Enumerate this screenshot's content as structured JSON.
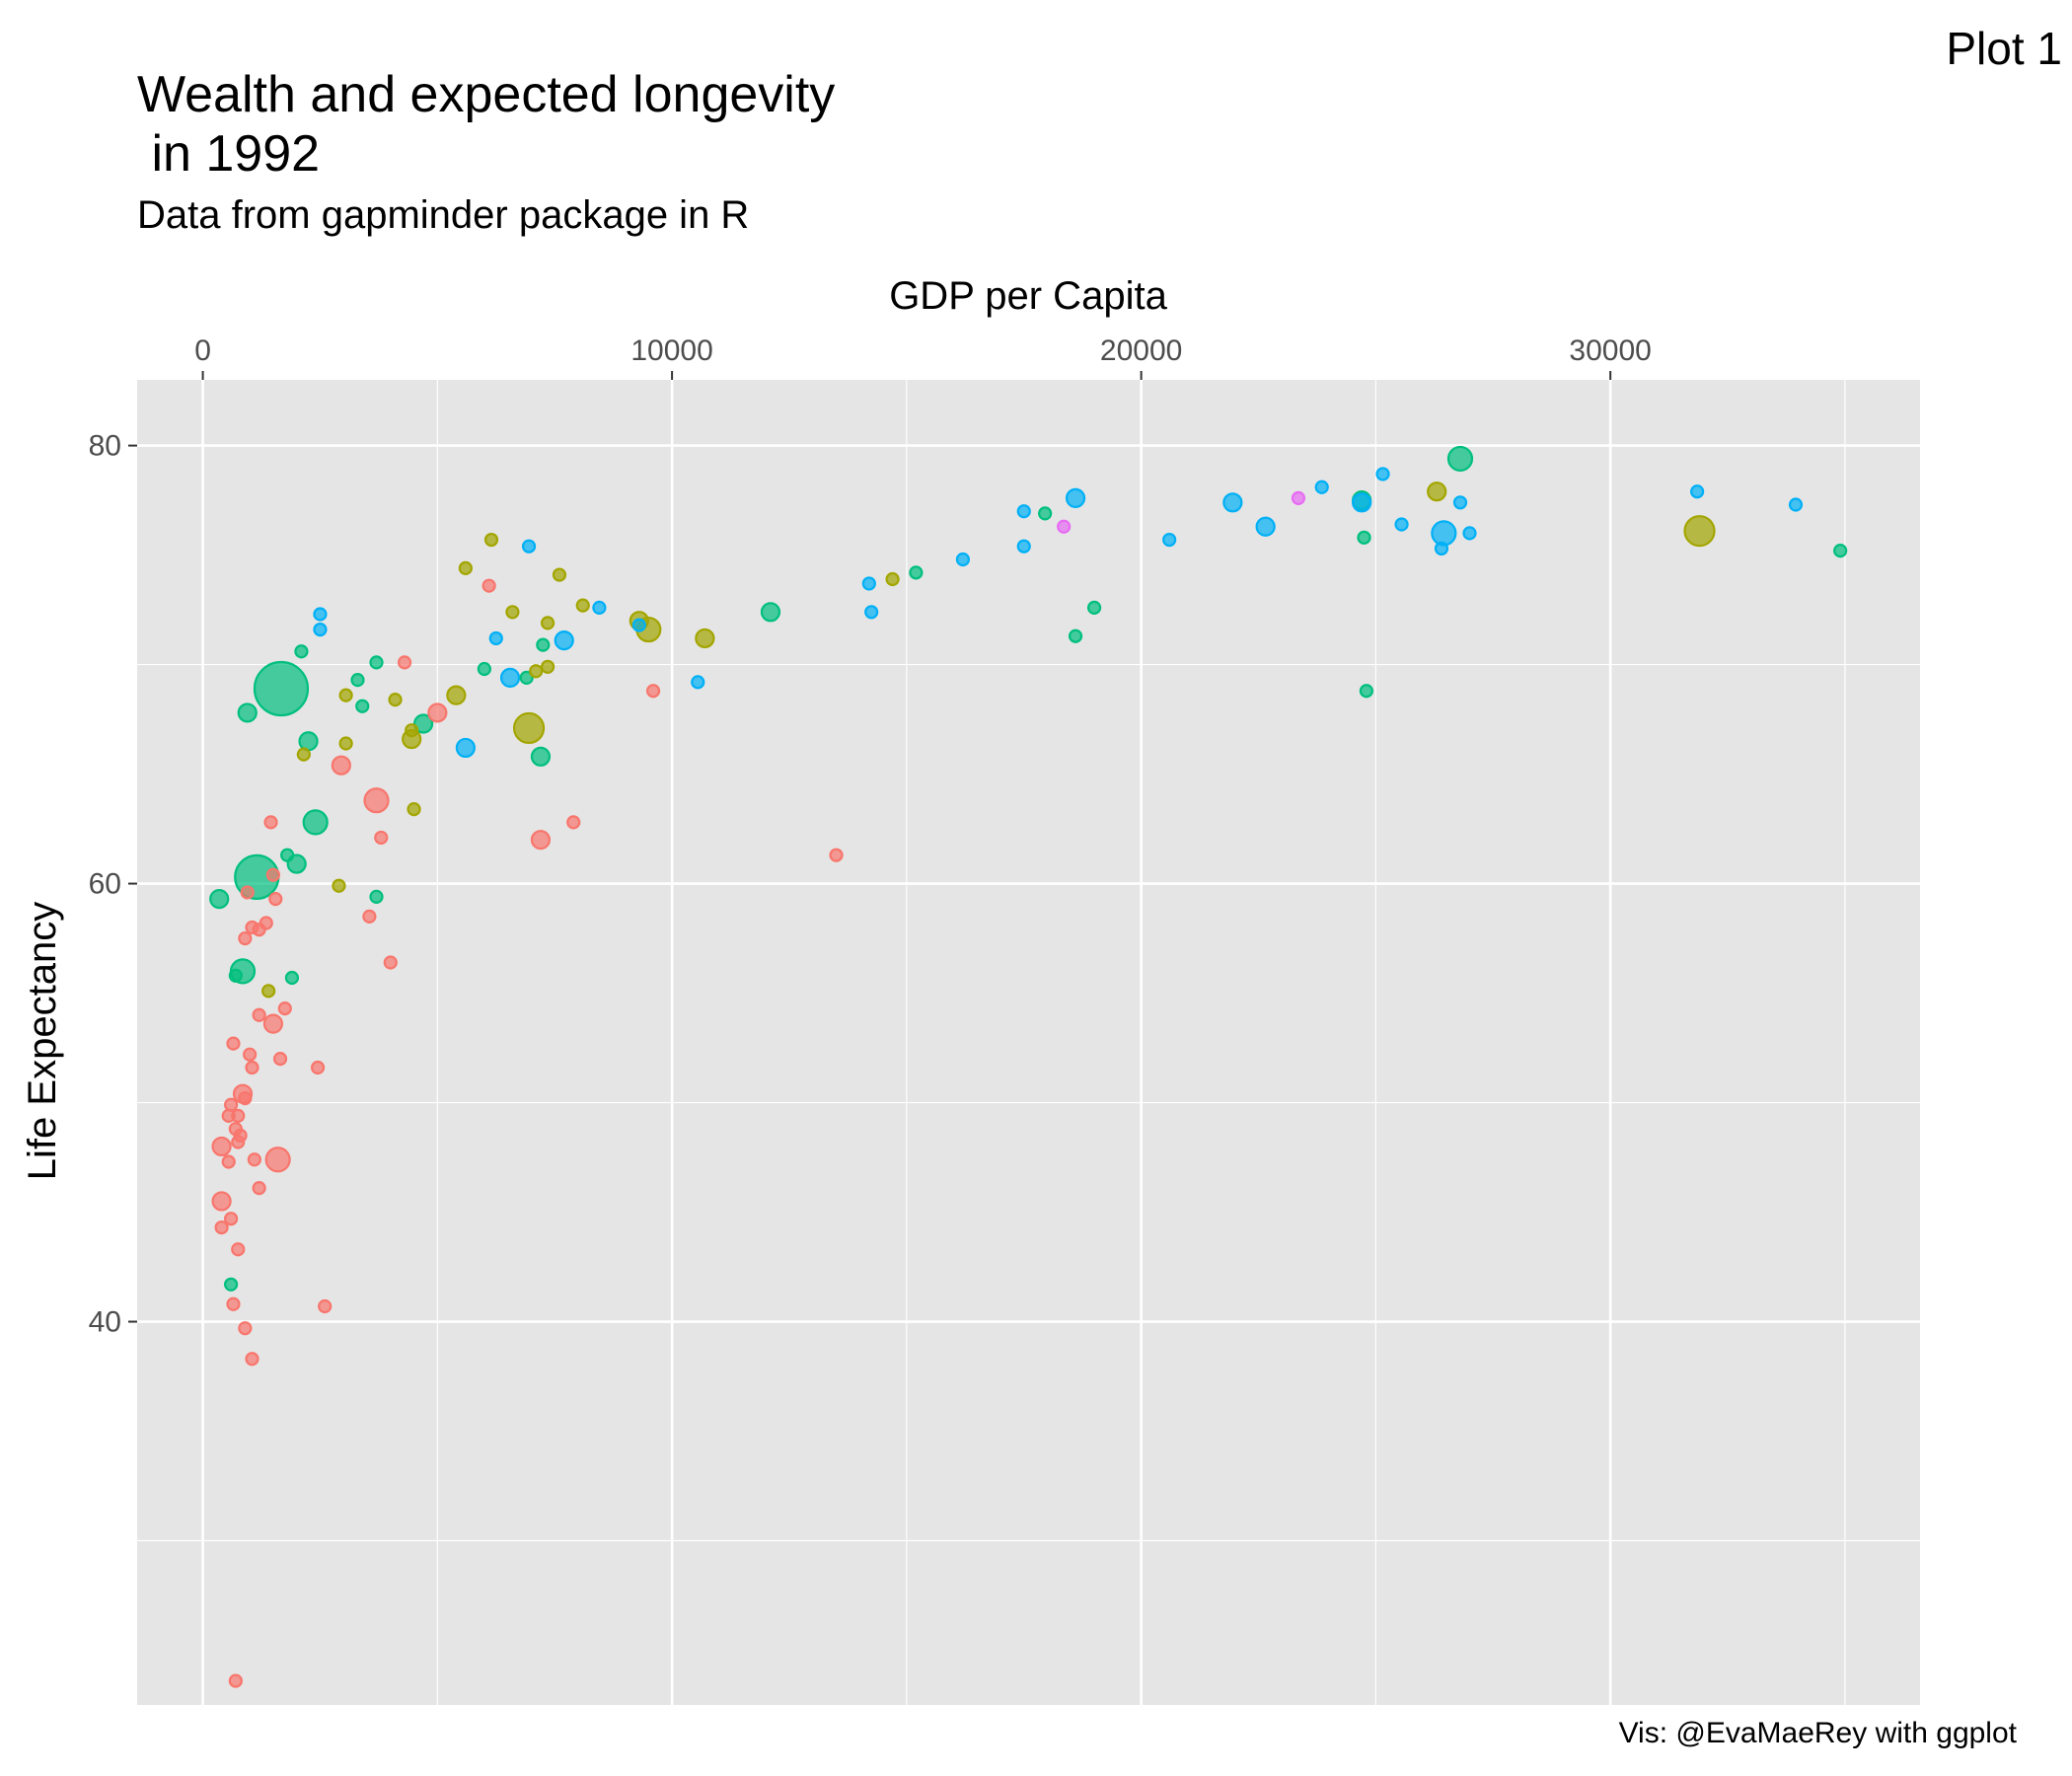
{
  "plot_label": "Plot 1",
  "caption": "Vis: @EvaMaeRey with ggplot",
  "colors": {
    "Africa": "#F8766D",
    "Americas": "#A3A500",
    "Asia": "#00BF7D",
    "Europe": "#00B0F6",
    "Oceania": "#E76BF3",
    "panel_bg": "#E5E5E5",
    "grid": "#FFFFFF"
  },
  "chart_data": {
    "type": "scatter",
    "title": "Wealth and expected longevity\n in 1992",
    "subtitle": "Data from gapminder package in R",
    "xlabel": "GDP per Capita",
    "ylabel": "Life Expectancy",
    "x_axis_position": "top",
    "xlim": [
      -1400,
      36600
    ],
    "ylim": [
      22.5,
      83
    ],
    "x_ticks": [
      0,
      10000,
      20000,
      30000
    ],
    "x_tick_labels": [
      "0",
      "10000",
      "20000",
      "30000"
    ],
    "y_ticks": [
      40,
      60,
      80
    ],
    "y_tick_labels": [
      "40",
      "60",
      "80"
    ],
    "grid": true,
    "legend": "none",
    "color_by": "continent",
    "size_by": "population",
    "points": [
      [
        1670,
        68.9,
        5,
        "Asia"
      ],
      [
        1150,
        60.3,
        4,
        "Asia"
      ],
      [
        2400,
        62.8,
        2,
        "Asia"
      ],
      [
        2000,
        60.9,
        1,
        "Asia"
      ],
      [
        350,
        59.3,
        1,
        "Asia"
      ],
      [
        950,
        67.8,
        1,
        "Asia"
      ],
      [
        2250,
        66.5,
        1,
        "Asia"
      ],
      [
        2100,
        70.6,
        0,
        "Asia"
      ],
      [
        3700,
        70.1,
        0,
        "Asia"
      ],
      [
        3300,
        69.3,
        0,
        "Asia"
      ],
      [
        3400,
        68.1,
        0,
        "Asia"
      ],
      [
        1800,
        61.3,
        0,
        "Asia"
      ],
      [
        3700,
        59.4,
        0,
        "Asia"
      ],
      [
        850,
        56,
        2,
        "Asia"
      ],
      [
        700,
        55.8,
        0,
        "Asia"
      ],
      [
        1900,
        55.7,
        0,
        "Asia"
      ],
      [
        600,
        41.7,
        0,
        "Asia"
      ],
      [
        4700,
        67.3,
        1,
        "Asia"
      ],
      [
        7200,
        65.8,
        1,
        "Asia"
      ],
      [
        7250,
        70.9,
        0,
        "Asia"
      ],
      [
        6000,
        69.8,
        0,
        "Asia"
      ],
      [
        6900,
        69.4,
        0,
        "Asia"
      ],
      [
        12100,
        72.4,
        1,
        "Asia"
      ],
      [
        15200,
        74.2,
        0,
        "Asia"
      ],
      [
        17950,
        76.9,
        0,
        "Asia"
      ],
      [
        18600,
        71.3,
        0,
        "Asia"
      ],
      [
        19000,
        72.6,
        0,
        "Asia"
      ],
      [
        24700,
        77.5,
        1,
        "Asia"
      ],
      [
        24750,
        75.8,
        0,
        "Asia"
      ],
      [
        24800,
        68.8,
        0,
        "Asia"
      ],
      [
        26800,
        79.4,
        2,
        "Asia"
      ],
      [
        34900,
        75.2,
        0,
        "Asia"
      ],
      [
        1500,
        60.4,
        0,
        "Africa"
      ],
      [
        1550,
        59.3,
        0,
        "Africa"
      ],
      [
        1200,
        57.9,
        0,
        "Africa"
      ],
      [
        1350,
        58.2,
        0,
        "Africa"
      ],
      [
        1050,
        58,
        0,
        "Africa"
      ],
      [
        900,
        57.5,
        0,
        "Africa"
      ],
      [
        950,
        59.6,
        0,
        "Africa"
      ],
      [
        1450,
        62.8,
        0,
        "Africa"
      ],
      [
        1200,
        54,
        0,
        "Africa"
      ],
      [
        1500,
        53.6,
        1,
        "Africa"
      ],
      [
        1750,
        54.3,
        0,
        "Africa"
      ],
      [
        1650,
        52,
        0,
        "Africa"
      ],
      [
        1000,
        52.2,
        0,
        "Africa"
      ],
      [
        1050,
        51.6,
        0,
        "Africa"
      ],
      [
        650,
        52.7,
        0,
        "Africa"
      ],
      [
        850,
        50.4,
        1,
        "Africa"
      ],
      [
        900,
        50.2,
        0,
        "Africa"
      ],
      [
        600,
        49.9,
        0,
        "Africa"
      ],
      [
        550,
        49.4,
        0,
        "Africa"
      ],
      [
        750,
        49.4,
        0,
        "Africa"
      ],
      [
        700,
        48.8,
        0,
        "Africa"
      ],
      [
        800,
        48.5,
        0,
        "Africa"
      ],
      [
        750,
        48.2,
        0,
        "Africa"
      ],
      [
        400,
        48,
        1,
        "Africa"
      ],
      [
        1100,
        47.4,
        0,
        "Africa"
      ],
      [
        550,
        47.3,
        0,
        "Africa"
      ],
      [
        1600,
        47.4,
        2,
        "Africa"
      ],
      [
        1200,
        46.1,
        0,
        "Africa"
      ],
      [
        400,
        45.5,
        1,
        "Africa"
      ],
      [
        600,
        44.7,
        0,
        "Africa"
      ],
      [
        400,
        44.3,
        0,
        "Africa"
      ],
      [
        750,
        43.3,
        0,
        "Africa"
      ],
      [
        650,
        40.8,
        0,
        "Africa"
      ],
      [
        900,
        39.7,
        0,
        "Africa"
      ],
      [
        1050,
        38.3,
        0,
        "Africa"
      ],
      [
        700,
        23.6,
        0,
        "Africa"
      ],
      [
        2450,
        51.6,
        0,
        "Africa"
      ],
      [
        2600,
        40.7,
        0,
        "Africa"
      ],
      [
        2950,
        65.4,
        1,
        "Africa"
      ],
      [
        3700,
        63.8,
        2,
        "Africa"
      ],
      [
        3800,
        62.1,
        0,
        "Africa"
      ],
      [
        3550,
        58.5,
        0,
        "Africa"
      ],
      [
        4000,
        56.4,
        0,
        "Africa"
      ],
      [
        4300,
        70.1,
        0,
        "Africa"
      ],
      [
        5000,
        67.8,
        1,
        "Africa"
      ],
      [
        6100,
        73.6,
        0,
        "Africa"
      ],
      [
        7200,
        62,
        1,
        "Africa"
      ],
      [
        7900,
        62.8,
        0,
        "Africa"
      ],
      [
        9600,
        68.8,
        0,
        "Africa"
      ],
      [
        13500,
        61.3,
        0,
        "Africa"
      ],
      [
        1400,
        55.1,
        0,
        "Americas"
      ],
      [
        2900,
        59.9,
        0,
        "Americas"
      ],
      [
        2150,
        65.9,
        0,
        "Americas"
      ],
      [
        3050,
        66.4,
        0,
        "Americas"
      ],
      [
        3050,
        68.6,
        0,
        "Americas"
      ],
      [
        4100,
        68.4,
        0,
        "Americas"
      ],
      [
        4450,
        66.6,
        1,
        "Americas"
      ],
      [
        4450,
        67,
        0,
        "Americas"
      ],
      [
        4500,
        63.4,
        0,
        "Americas"
      ],
      [
        5400,
        68.6,
        1,
        "Americas"
      ],
      [
        5600,
        74.4,
        0,
        "Americas"
      ],
      [
        6150,
        75.7,
        0,
        "Americas"
      ],
      [
        6600,
        72.4,
        0,
        "Americas"
      ],
      [
        7100,
        69.7,
        0,
        "Americas"
      ],
      [
        6950,
        67.1,
        3,
        "Americas"
      ],
      [
        7350,
        71.9,
        0,
        "Americas"
      ],
      [
        7350,
        69.9,
        0,
        "Americas"
      ],
      [
        7600,
        74.1,
        0,
        "Americas"
      ],
      [
        8100,
        72.7,
        0,
        "Americas"
      ],
      [
        9300,
        72,
        1,
        "Americas"
      ],
      [
        9500,
        71.6,
        2,
        "Americas"
      ],
      [
        10700,
        71.2,
        1,
        "Americas"
      ],
      [
        14700,
        73.9,
        0,
        "Americas"
      ],
      [
        26300,
        77.9,
        1,
        "Americas"
      ],
      [
        31900,
        76.1,
        3,
        "Americas"
      ],
      [
        2500,
        72.3,
        0,
        "Europe"
      ],
      [
        2500,
        71.6,
        0,
        "Europe"
      ],
      [
        5600,
        66.2,
        1,
        "Europe"
      ],
      [
        6250,
        71.2,
        0,
        "Europe"
      ],
      [
        6550,
        69.4,
        1,
        "Europe"
      ],
      [
        6950,
        75.4,
        0,
        "Europe"
      ],
      [
        7700,
        71.1,
        1,
        "Europe"
      ],
      [
        8450,
        72.6,
        0,
        "Europe"
      ],
      [
        9300,
        71.8,
        0,
        "Europe"
      ],
      [
        10550,
        69.2,
        0,
        "Europe"
      ],
      [
        14200,
        73.7,
        0,
        "Europe"
      ],
      [
        14250,
        72.4,
        0,
        "Europe"
      ],
      [
        16200,
        74.8,
        0,
        "Europe"
      ],
      [
        17500,
        77,
        0,
        "Europe"
      ],
      [
        17500,
        75.4,
        0,
        "Europe"
      ],
      [
        18600,
        77.6,
        1,
        "Europe"
      ],
      [
        20600,
        75.7,
        0,
        "Europe"
      ],
      [
        21950,
        77.4,
        1,
        "Europe"
      ],
      [
        22650,
        76.3,
        1,
        "Europe"
      ],
      [
        23850,
        78.1,
        0,
        "Europe"
      ],
      [
        24700,
        77.4,
        1,
        "Europe"
      ],
      [
        25150,
        78.7,
        0,
        "Europe"
      ],
      [
        25550,
        76.4,
        0,
        "Europe"
      ],
      [
        26400,
        75.3,
        0,
        "Europe"
      ],
      [
        26450,
        76,
        2,
        "Europe"
      ],
      [
        26800,
        77.4,
        0,
        "Europe"
      ],
      [
        27000,
        76,
        0,
        "Europe"
      ],
      [
        31850,
        77.9,
        0,
        "Europe"
      ],
      [
        33950,
        77.3,
        0,
        "Europe"
      ],
      [
        18350,
        76.3,
        0,
        "Oceania"
      ],
      [
        23350,
        77.6,
        0,
        "Oceania"
      ]
    ]
  }
}
